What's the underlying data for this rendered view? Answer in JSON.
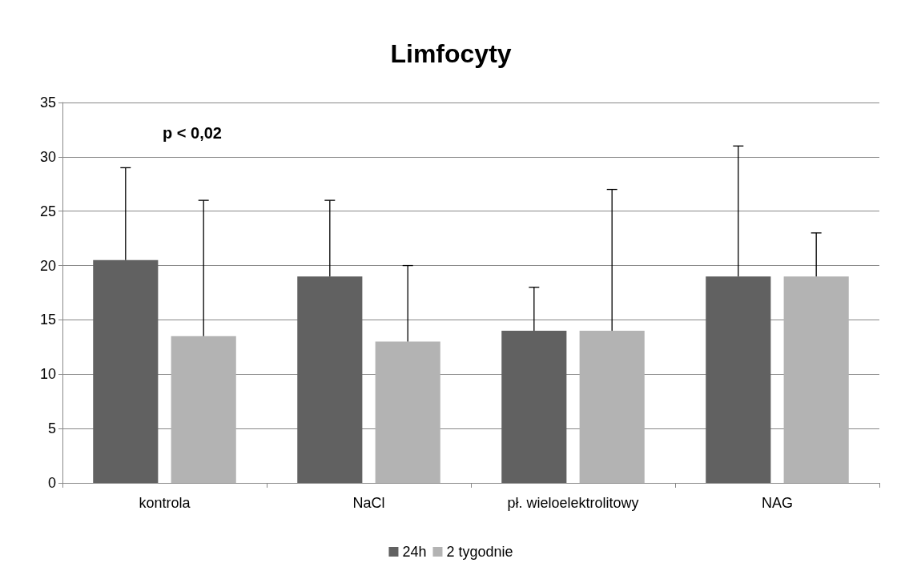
{
  "chart_data": {
    "type": "bar",
    "title": "Limfocyty",
    "categories": [
      "kontrola",
      "NaCl",
      "pł. wieloelektrolitowy",
      "NAG"
    ],
    "series": [
      {
        "name": "24h",
        "color": "#616161",
        "values": [
          20.5,
          19,
          14,
          19
        ],
        "errors": [
          [
            20.5,
            29
          ],
          [
            19,
            26
          ],
          [
            14,
            18
          ],
          [
            19,
            31
          ]
        ]
      },
      {
        "name": "2 tygodnie",
        "color": "#b3b3b3",
        "values": [
          13.5,
          13,
          14,
          19
        ],
        "errors": [
          [
            13.5,
            26
          ],
          [
            13,
            20
          ],
          [
            14,
            27
          ],
          [
            19,
            23
          ]
        ]
      }
    ],
    "ylim": [
      0,
      35
    ],
    "yticks": [
      0,
      5,
      10,
      15,
      20,
      25,
      30,
      35
    ],
    "grid": "y",
    "legend": "bottom",
    "annotations": [
      "p < 0,02"
    ]
  }
}
